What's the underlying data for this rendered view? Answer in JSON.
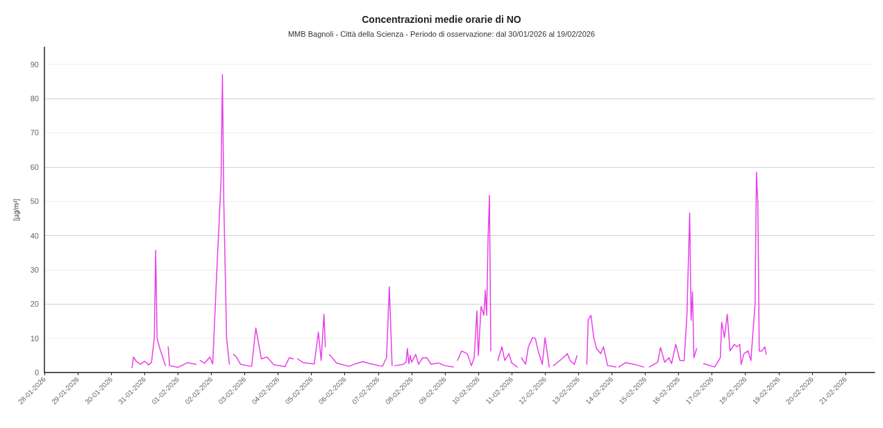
{
  "chart_data": {
    "type": "line",
    "title": "Concentrazioni medie orarie di NO",
    "subtitle": "MMB Bagnoli - Città della Scienza - Periodo di osservazione: dal 30/01/2026 al 19/02/2026",
    "ylabel": "[µg/m³]",
    "xlim": [
      "2026-01-28",
      "2026-02-21T21:00"
    ],
    "xticks": [
      {
        "value": "2026-01-28",
        "label": "28-01-2026"
      },
      {
        "value": "2026-01-29",
        "label": "29-01-2026"
      },
      {
        "value": "2026-01-30",
        "label": "30-01-2026"
      },
      {
        "value": "2026-01-31",
        "label": "31-01-2026"
      },
      {
        "value": "2026-02-01",
        "label": "01-02-2026"
      },
      {
        "value": "2026-02-02",
        "label": "02-02-2026"
      },
      {
        "value": "2026-02-03",
        "label": "03-02-2026"
      },
      {
        "value": "2026-02-04",
        "label": "04-02-2026"
      },
      {
        "value": "2026-02-05",
        "label": "05-02-2026"
      },
      {
        "value": "2026-02-06",
        "label": "06-02-2026"
      },
      {
        "value": "2026-02-07",
        "label": "07-02-2026"
      },
      {
        "value": "2026-02-08",
        "label": "08-02-2026"
      },
      {
        "value": "2026-02-09",
        "label": "09-02-2026"
      },
      {
        "value": "2026-02-10",
        "label": "10-02-2026"
      },
      {
        "value": "2026-02-11",
        "label": "11-02-2026"
      },
      {
        "value": "2026-02-12",
        "label": "12-02-2026"
      },
      {
        "value": "2026-02-13",
        "label": "13-02-2026"
      },
      {
        "value": "2026-02-14",
        "label": "14-02-2026"
      },
      {
        "value": "2026-02-15",
        "label": "15-02-2026"
      },
      {
        "value": "2026-02-16",
        "label": "16-02-2026"
      },
      {
        "value": "2026-02-17",
        "label": "17-02-2026"
      },
      {
        "value": "2026-02-18",
        "label": "18-02-2026"
      },
      {
        "value": "2026-02-19",
        "label": "19-02-2026"
      },
      {
        "value": "2026-02-20",
        "label": "20-02-2026"
      },
      {
        "value": "2026-02-21",
        "label": "21-02-2026"
      }
    ],
    "ylim": [
      0,
      95
    ],
    "yticks": [
      0,
      10,
      20,
      30,
      40,
      50,
      60,
      70,
      80,
      90
    ],
    "grid": "y",
    "marker": "none",
    "line_style": "solid",
    "series": [
      {
        "color": "#e83ee8",
        "x": [
          "2026-01-30T15:00",
          "2026-01-30T16:00",
          "2026-01-30T18:00",
          "2026-01-30T21:00",
          "2026-01-31T00:00",
          "2026-01-31T03:00",
          "2026-01-31T05:00",
          "2026-01-31T07:00",
          "2026-01-31T08:00",
          "2026-01-31T09:00",
          "2026-01-31T11:00",
          "2026-01-31T15:00",
          "2026-01-31T16:00",
          "2026-01-31T17:00",
          "2026-01-31T18:00",
          "2026-02-01T00:00",
          "2026-02-01T07:00",
          "2026-02-01T13:00",
          "2026-02-01T14:00",
          "2026-02-01T16:00",
          "2026-02-01T19:00",
          "2026-02-01T23:00",
          "2026-02-02T01:00",
          "2026-02-02T04:00",
          "2026-02-02T07:00",
          "2026-02-02T08:00",
          "2026-02-02T09:00",
          "2026-02-02T11:00",
          "2026-02-02T13:00",
          "2026-02-02T14:00",
          "2026-02-02T16:00",
          "2026-02-02T18:00",
          "2026-02-02T21:00",
          "2026-02-03T05:00",
          "2026-02-03T08:00",
          "2026-02-03T12:00",
          "2026-02-03T16:00",
          "2026-02-03T21:00",
          "2026-02-04T05:00",
          "2026-02-04T08:00",
          "2026-02-04T11:00",
          "2026-02-04T12:00",
          "2026-02-04T14:00",
          "2026-02-04T18:00",
          "2026-02-05T02:00",
          "2026-02-05T05:00",
          "2026-02-05T07:00",
          "2026-02-05T09:00",
          "2026-02-05T10:00",
          "2026-02-05T11:00",
          "2026-02-05T13:00",
          "2026-02-05T18:00",
          "2026-02-06T03:00",
          "2026-02-06T08:00",
          "2026-02-06T13:00",
          "2026-02-06T18:00",
          "2026-02-07T03:00",
          "2026-02-07T06:00",
          "2026-02-07T08:00",
          "2026-02-07T10:00",
          "2026-02-07T11:00",
          "2026-02-07T12:00",
          "2026-02-07T18:00",
          "2026-02-07T20:00",
          "2026-02-07T21:00",
          "2026-02-07T22:00",
          "2026-02-07T23:00",
          "2026-02-08T00:00",
          "2026-02-08T03:00",
          "2026-02-08T05:00",
          "2026-02-08T08:00",
          "2026-02-08T11:00",
          "2026-02-08T14:00",
          "2026-02-08T19:00",
          "2026-02-09T00:00",
          "2026-02-09T06:00",
          "2026-02-09T07:00",
          "2026-02-09T09:00",
          "2026-02-09T12:00",
          "2026-02-09T16:00",
          "2026-02-09T19:00",
          "2026-02-09T21:00",
          "2026-02-09T23:00",
          "2026-02-10T00:00",
          "2026-02-10T02:00",
          "2026-02-10T04:00",
          "2026-02-10T05:00",
          "2026-02-10T06:00",
          "2026-02-10T07:00",
          "2026-02-10T08:00",
          "2026-02-10T09:00",
          "2026-02-10T11:00",
          "2026-02-10T14:00",
          "2026-02-10T17:00",
          "2026-02-10T19:00",
          "2026-02-10T22:00",
          "2026-02-11T00:00",
          "2026-02-11T04:00",
          "2026-02-11T05:00",
          "2026-02-11T07:00",
          "2026-02-11T10:00",
          "2026-02-11T12:00",
          "2026-02-11T15:00",
          "2026-02-11T17:00",
          "2026-02-11T19:00",
          "2026-02-11T22:00",
          "2026-02-12T00:00",
          "2026-02-12T03:00",
          "2026-02-12T04:00",
          "2026-02-12T06:00",
          "2026-02-12T13:00",
          "2026-02-12T16:00",
          "2026-02-12T18:00",
          "2026-02-12T21:00",
          "2026-02-12T23:00",
          "2026-02-13T02:00",
          "2026-02-13T06:00",
          "2026-02-13T07:00",
          "2026-02-13T09:00",
          "2026-02-13T11:00",
          "2026-02-13T13:00",
          "2026-02-13T16:00",
          "2026-02-13T18:00",
          "2026-02-13T21:00",
          "2026-02-14T03:00",
          "2026-02-14T04:00",
          "2026-02-14T05:00",
          "2026-02-14T10:00",
          "2026-02-14T16:00",
          "2026-02-14T23:00",
          "2026-02-15T01:00",
          "2026-02-15T03:00",
          "2026-02-15T09:00",
          "2026-02-15T11:00",
          "2026-02-15T14:00",
          "2026-02-15T17:00",
          "2026-02-15T19:00",
          "2026-02-15T22:00",
          "2026-02-16T01:00",
          "2026-02-16T04:00",
          "2026-02-16T06:00",
          "2026-02-16T08:00",
          "2026-02-16T09:00",
          "2026-02-16T10:00",
          "2026-02-16T11:00",
          "2026-02-16T13:00",
          "2026-02-16T15:00",
          "2026-02-16T18:00",
          "2026-02-17T02:00",
          "2026-02-17T06:00",
          "2026-02-17T07:00",
          "2026-02-17T09:00",
          "2026-02-17T11:00",
          "2026-02-17T13:00",
          "2026-02-17T16:00",
          "2026-02-17T18:00",
          "2026-02-17T20:00",
          "2026-02-17T21:00",
          "2026-02-17T23:00",
          "2026-02-18T02:00",
          "2026-02-18T04:00",
          "2026-02-18T07:00",
          "2026-02-18T08:00",
          "2026-02-18T09:00",
          "2026-02-18T10:00",
          "2026-02-18T12:00",
          "2026-02-18T14:00",
          "2026-02-18T15:00"
        ],
        "values": [
          1.4,
          4.5,
          3.3,
          2.4,
          3.3,
          2.2,
          3,
          10,
          35.7,
          10,
          7,
          2,
          null,
          7.5,
          2,
          1.5,
          2.9,
          2.4,
          null,
          3.5,
          2.7,
          4.5,
          2.5,
          30,
          56,
          87,
          49.5,
          10,
          2.4,
          null,
          5.3,
          4.6,
          2.4,
          1.8,
          13,
          4,
          4.5,
          2.3,
          1.7,
          4.3,
          4,
          null,
          4,
          2.9,
          2.5,
          11.8,
          3.5,
          17,
          7.5,
          null,
          5.2,
          2.8,
          1.8,
          2.6,
          3.2,
          2.6,
          1.8,
          4.3,
          25,
          2,
          null,
          2,
          2.4,
          3,
          7,
          2.6,
          5,
          3,
          5.3,
          2.4,
          4.3,
          4.3,
          2.4,
          2.8,
          2,
          1.6,
          null,
          3.5,
          6.3,
          5.5,
          2,
          4.3,
          18,
          4.9,
          19.3,
          16.7,
          24,
          16.7,
          39,
          51.7,
          6.3,
          null,
          3.5,
          7.5,
          3.5,
          5.5,
          2.8,
          1.6,
          null,
          4.3,
          2.4,
          7.5,
          10.2,
          10,
          6.3,
          2.4,
          10.2,
          1.6,
          null,
          2,
          4.3,
          5.5,
          3.5,
          2.4,
          4.9,
          null,
          2.4,
          15.3,
          16.7,
          10.2,
          7,
          5.5,
          7.5,
          2,
          1.6,
          null,
          1.6,
          2.9,
          2.4,
          1.6,
          null,
          1.6,
          3,
          7.3,
          3,
          4.3,
          2.6,
          8.2,
          3.5,
          3.5,
          16.7,
          46.6,
          15.3,
          23.6,
          4.3,
          7,
          null,
          2.6,
          1.6,
          4.3,
          14.7,
          10.2,
          17,
          6.3,
          8.2,
          7.5,
          8.2,
          2.4,
          5.5,
          6.3,
          3.5,
          20,
          58.5,
          49.5,
          6.3,
          6.3,
          7.5,
          5.3
        ]
      }
    ]
  }
}
